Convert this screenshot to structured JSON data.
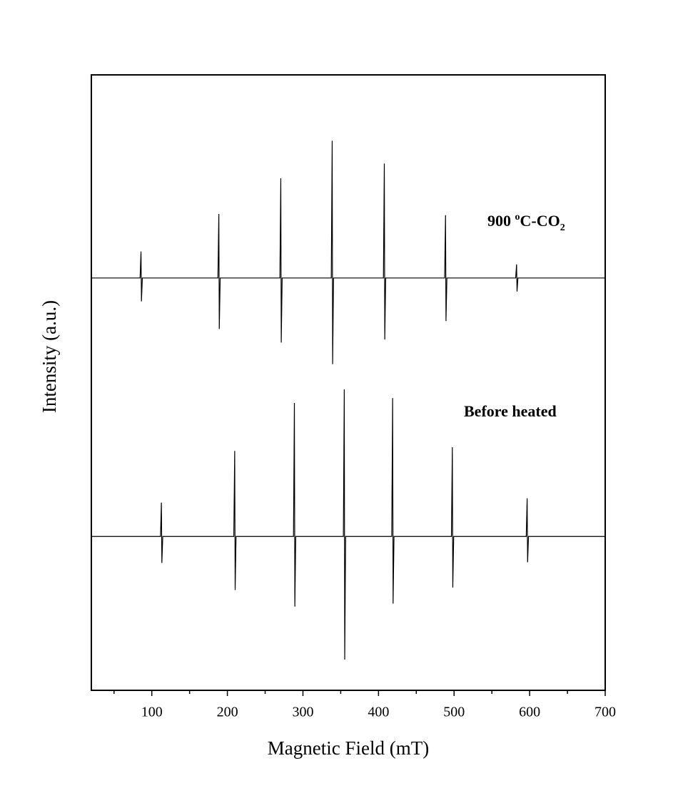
{
  "chart_data": {
    "type": "line",
    "x_label": "Magnetic Field (mT)",
    "y_label": "Intensity (a.u.)",
    "xlim": [
      20,
      700
    ],
    "xticks": [
      100,
      200,
      300,
      400,
      500,
      600,
      700
    ],
    "xminorticks": [
      50,
      150,
      250,
      350,
      450,
      550,
      650
    ],
    "ylim": [
      0,
      100
    ],
    "annotations": [
      {
        "parts": [
          "900 ",
          "o",
          "C-CO",
          "2"
        ]
      },
      {
        "parts": [
          "Before heated"
        ]
      }
    ],
    "series": [
      {
        "color": "#000000",
        "x": [
          20,
          84.5,
          85.7,
          86.3,
          87.5,
          187.5,
          188.7,
          189.3,
          190.5,
          269.5,
          270.7,
          271.3,
          272.5,
          337.5,
          338.7,
          339.3,
          340.5,
          406.5,
          407.7,
          408.3,
          409.5,
          487.5,
          488.7,
          489.3,
          490.5,
          581.5,
          582.7,
          583.3,
          584.5,
          700
        ],
        "values": [
          67,
          67,
          71.3,
          63.2,
          67,
          67,
          77.4,
          58.7,
          67,
          67,
          83.2,
          56.5,
          67,
          67,
          89.3,
          53,
          67,
          67,
          85.6,
          57,
          67,
          67,
          77.2,
          60,
          67,
          67,
          69.2,
          64.8,
          67,
          67
        ]
      },
      {
        "color": "#000000",
        "x": [
          20,
          111.5,
          112.7,
          113.3,
          114.5,
          208.5,
          209.7,
          210.3,
          211.5,
          287.5,
          288.7,
          289.3,
          290.5,
          353.5,
          354.7,
          355.3,
          356.5,
          417.5,
          418.7,
          419.3,
          420.5,
          496.5,
          497.7,
          498.3,
          499.5,
          595.5,
          596.7,
          597.3,
          598.5,
          700
        ],
        "values": [
          25,
          25,
          30.5,
          20.7,
          25,
          25,
          38.9,
          16.3,
          25,
          25,
          46.7,
          13.6,
          25,
          25,
          48.9,
          5,
          25,
          25,
          47.5,
          14.1,
          25,
          25,
          39.5,
          16.7,
          25,
          25,
          31.2,
          20.8,
          25,
          25
        ]
      }
    ]
  }
}
